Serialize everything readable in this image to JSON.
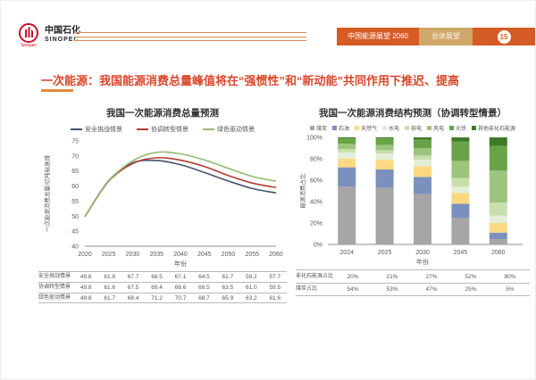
{
  "header": {
    "logo_cn": "中国石化",
    "logo_en": "SINOPEC",
    "band_outlook": "中国能源展望 2060",
    "band_section": "总体展望",
    "page_number": "15"
  },
  "slide_title": "一次能源：我国能源消费总量峰值将在“强惯性”和“新动能”共同作用下推迟、提高",
  "colors": {
    "accent_orange": "#d65b24",
    "band_tan": "#cfa768",
    "title_red": "#d9472b",
    "axis_gray": "#8c8c8c",
    "text_gray": "#555555"
  },
  "chart_data": [
    {
      "type": "line",
      "title": "我国一次能源消费总量预测",
      "x": [
        2020,
        2025,
        2030,
        2035,
        2040,
        2045,
        2050,
        2055,
        2060
      ],
      "xlabel": "年份",
      "ylabel": "一次能源消费总量/亿吨标准煤",
      "ylim": [
        40,
        75
      ],
      "yticks": [
        40,
        45,
        50,
        55,
        60,
        65,
        70,
        75
      ],
      "grid": false,
      "legend_position": "top",
      "series": [
        {
          "name": "安全挑战情景",
          "color": "#44546a",
          "values": [
            49.8,
            61.8,
            67.7,
            68.5,
            67.1,
            64.5,
            61.7,
            59.2,
            57.7
          ]
        },
        {
          "name": "协调转型情景",
          "color": "#b43b32",
          "values": [
            49.8,
            61.6,
            67.5,
            69.4,
            68.6,
            66.5,
            63.5,
            61.0,
            59.5
          ]
        },
        {
          "name": "绿色驱动情景",
          "color": "#90bb72",
          "values": [
            49.8,
            61.7,
            68.4,
            71.2,
            70.7,
            68.7,
            65.9,
            63.2,
            61.6
          ]
        }
      ]
    },
    {
      "type": "stacked-bar",
      "title": "我国一次能源消费结构预测（协调转型情景）",
      "categories": [
        "2024",
        "2025",
        "2030",
        "2045",
        "2060"
      ],
      "xlabel": "年份",
      "ylabel": "能源消费占比",
      "ylim": [
        0,
        100
      ],
      "ytick_labels": [
        "0%",
        "20%",
        "40%",
        "60%",
        "80%",
        "100%"
      ],
      "grid": false,
      "legend_position": "top",
      "series": [
        {
          "name": "煤炭",
          "color": "#a6a6a6",
          "values": [
            54,
            53,
            47,
            25,
            5
          ]
        },
        {
          "name": "石油",
          "color": "#7b90bd",
          "values": [
            18,
            17,
            16,
            13,
            6
          ]
        },
        {
          "name": "天然气",
          "color": "#fbd983",
          "values": [
            8,
            9,
            10,
            10,
            9
          ]
        },
        {
          "name": "水电",
          "color": "#e4eed6",
          "values": [
            6,
            6,
            6,
            6,
            7
          ]
        },
        {
          "name": "核电",
          "color": "#c8dfad",
          "values": [
            3,
            3,
            4,
            8,
            12
          ]
        },
        {
          "name": "风电",
          "color": "#9cc47c",
          "values": [
            5,
            5,
            7,
            16,
            30
          ]
        },
        {
          "name": "光伏",
          "color": "#68a447",
          "values": [
            5,
            6,
            8,
            18,
            23
          ]
        },
        {
          "name": "其他非化石能源",
          "color": "#3f7a28",
          "values": [
            1,
            1,
            2,
            4,
            8
          ]
        }
      ]
    }
  ],
  "left_table": {
    "rows": [
      {
        "label": "安全挑战情景",
        "values": [
          "49.8",
          "61.8",
          "67.7",
          "68.5",
          "67.1",
          "64.5",
          "61.7",
          "59.2",
          "57.7"
        ]
      },
      {
        "label": "协调转型情景",
        "values": [
          "49.8",
          "61.6",
          "67.5",
          "69.4",
          "68.6",
          "66.5",
          "63.5",
          "61.0",
          "59.5"
        ]
      },
      {
        "label": "绿色驱动情景",
        "values": [
          "49.8",
          "61.7",
          "68.4",
          "71.2",
          "70.7",
          "68.7",
          "65.9",
          "63.2",
          "61.6"
        ]
      }
    ]
  },
  "right_table": {
    "rows": [
      {
        "label": "非化石能源占比",
        "values": [
          "20%",
          "21%",
          "27%",
          "52%",
          "80%"
        ]
      },
      {
        "label": "煤炭占比",
        "values": [
          "54%",
          "53%",
          "47%",
          "25%",
          "5%"
        ]
      }
    ]
  }
}
